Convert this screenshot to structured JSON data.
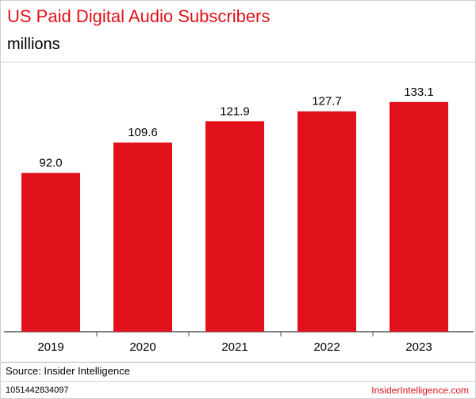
{
  "header": {
    "title": "US Paid Digital Audio Subscribers",
    "subtitle": "millions"
  },
  "footer": {
    "source": "Source: Insider Intelligence",
    "chart_id": "1051442834097",
    "brand": "InsiderIntelligence.com"
  },
  "colors": {
    "accent": "#e0111a",
    "text": "#000000"
  },
  "chart_data": {
    "type": "bar",
    "title": "US Paid Digital Audio Subscribers",
    "subtitle": "millions",
    "categories": [
      "2019",
      "2020",
      "2021",
      "2022",
      "2023"
    ],
    "values": [
      92.0,
      109.6,
      121.9,
      127.7,
      133.1
    ],
    "value_labels": [
      "92.0",
      "109.6",
      "121.9",
      "127.7",
      "133.1"
    ],
    "ylim": [
      0,
      140
    ],
    "grid": false,
    "legend": "none"
  }
}
